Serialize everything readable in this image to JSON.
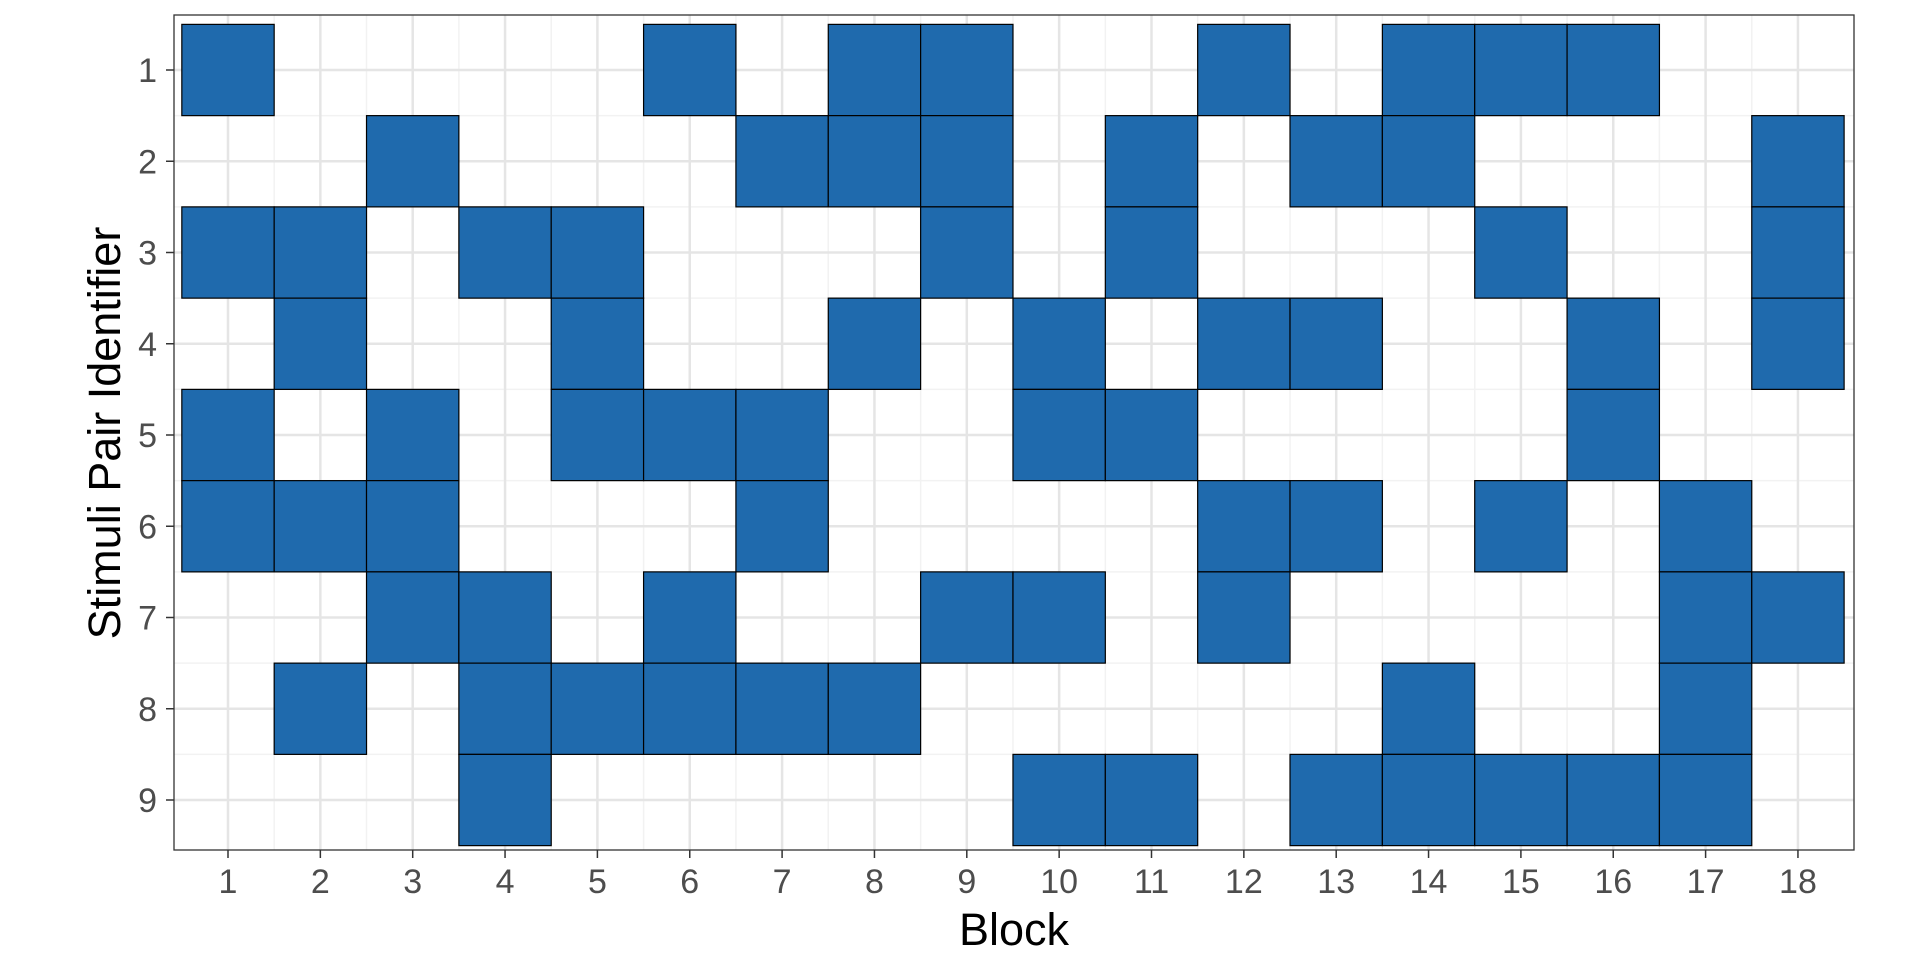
{
  "chart_data": {
    "type": "heatmap",
    "title": "",
    "xlabel": "Block",
    "ylabel": "Stimuli Pair Identifier",
    "x_categories": [
      "1",
      "2",
      "3",
      "4",
      "5",
      "6",
      "7",
      "8",
      "9",
      "10",
      "11",
      "12",
      "13",
      "14",
      "15",
      "16",
      "17",
      "18"
    ],
    "y_categories": [
      "1",
      "2",
      "3",
      "4",
      "5",
      "6",
      "7",
      "8",
      "9"
    ],
    "grid": true,
    "legend": "none",
    "fill_color": "#1f6aad",
    "cells": [
      [
        1,
        1
      ],
      [
        1,
        3
      ],
      [
        1,
        5
      ],
      [
        1,
        6
      ],
      [
        2,
        3
      ],
      [
        2,
        4
      ],
      [
        2,
        6
      ],
      [
        2,
        8
      ],
      [
        3,
        2
      ],
      [
        3,
        5
      ],
      [
        3,
        6
      ],
      [
        3,
        7
      ],
      [
        4,
        3
      ],
      [
        4,
        7
      ],
      [
        4,
        8
      ],
      [
        4,
        9
      ],
      [
        5,
        3
      ],
      [
        5,
        4
      ],
      [
        5,
        5
      ],
      [
        5,
        8
      ],
      [
        6,
        1
      ],
      [
        6,
        5
      ],
      [
        6,
        7
      ],
      [
        6,
        8
      ],
      [
        7,
        2
      ],
      [
        7,
        5
      ],
      [
        7,
        6
      ],
      [
        7,
        8
      ],
      [
        8,
        1
      ],
      [
        8,
        2
      ],
      [
        8,
        4
      ],
      [
        8,
        8
      ],
      [
        9,
        1
      ],
      [
        9,
        2
      ],
      [
        9,
        3
      ],
      [
        9,
        7
      ],
      [
        10,
        4
      ],
      [
        10,
        5
      ],
      [
        10,
        7
      ],
      [
        10,
        9
      ],
      [
        11,
        2
      ],
      [
        11,
        3
      ],
      [
        11,
        5
      ],
      [
        11,
        9
      ],
      [
        12,
        1
      ],
      [
        12,
        4
      ],
      [
        12,
        6
      ],
      [
        12,
        7
      ],
      [
        13,
        2
      ],
      [
        13,
        4
      ],
      [
        13,
        6
      ],
      [
        13,
        9
      ],
      [
        14,
        1
      ],
      [
        14,
        2
      ],
      [
        14,
        8
      ],
      [
        14,
        9
      ],
      [
        15,
        1
      ],
      [
        15,
        3
      ],
      [
        15,
        6
      ],
      [
        15,
        9
      ],
      [
        16,
        1
      ],
      [
        16,
        4
      ],
      [
        16,
        5
      ],
      [
        16,
        9
      ],
      [
        17,
        6
      ],
      [
        17,
        7
      ],
      [
        17,
        8
      ],
      [
        17,
        9
      ],
      [
        18,
        2
      ],
      [
        18,
        3
      ],
      [
        18,
        4
      ],
      [
        18,
        7
      ]
    ]
  }
}
